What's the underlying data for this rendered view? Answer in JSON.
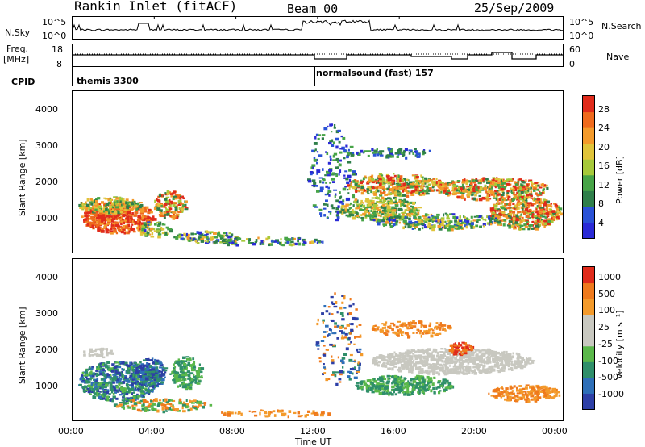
{
  "header": {
    "title": "Rankin Inlet (fitACF)",
    "beam": "Beam 00",
    "date": "25/Sep/2009"
  },
  "left_labels": {
    "nsky": "N.Sky",
    "freq_line1": "Freq.",
    "freq_line2": "[MHz]",
    "cpid": "CPID"
  },
  "right_labels": {
    "nsearch": "N.Search",
    "nave": "Nave"
  },
  "axis_ticks": {
    "nsky_top": "10^5",
    "nsky_bottom": "10^0",
    "freq_top": "18",
    "freq_bottom": "8",
    "nave_top": "60",
    "nave_bottom": "0"
  },
  "cpid_labels": [
    "themis 3300",
    "normalsound (fast) 157"
  ],
  "chart_data": [
    {
      "type": "heatmap",
      "name": "power",
      "ylabel": "Slant Range [km]",
      "yticks": [
        "1000",
        "2000",
        "3000",
        "4000"
      ],
      "xticks": [
        "00:00",
        "04:00",
        "08:00",
        "12:00",
        "16:00",
        "20:00",
        "00:00"
      ],
      "colorbar_label": "Power [dB]",
      "colorbar_ticks": [
        "28",
        "24",
        "20",
        "16",
        "12",
        "8",
        "4"
      ],
      "colors": [
        "#2a2ad6",
        "#2a52d6",
        "#2f7f4a",
        "#47a447",
        "#a6c93a",
        "#e0c43a",
        "#f39a2b",
        "#ef6a1d",
        "#e02b1b"
      ]
    },
    {
      "type": "heatmap",
      "name": "velocity",
      "ylabel": "Slant Range [km]",
      "yticks": [
        "1000",
        "2000",
        "3000",
        "4000"
      ],
      "xticks": [
        "00:00",
        "04:00",
        "08:00",
        "12:00",
        "16:00",
        "20:00",
        "00:00"
      ],
      "xlabel": "Time UT",
      "colorbar_label": "Velocity [m s⁻¹]",
      "colorbar_ticks": [
        "1000",
        "500",
        "100",
        "25",
        "-25",
        "-100",
        "-500",
        "-1000"
      ],
      "colors": [
        "#2d3fa6",
        "#2e6fb8",
        "#2f8f6a",
        "#5ab84a",
        "#c8c8c0",
        "#c8c8c0",
        "#f39a2b",
        "#ef7a1d",
        "#e02b1b"
      ]
    }
  ]
}
